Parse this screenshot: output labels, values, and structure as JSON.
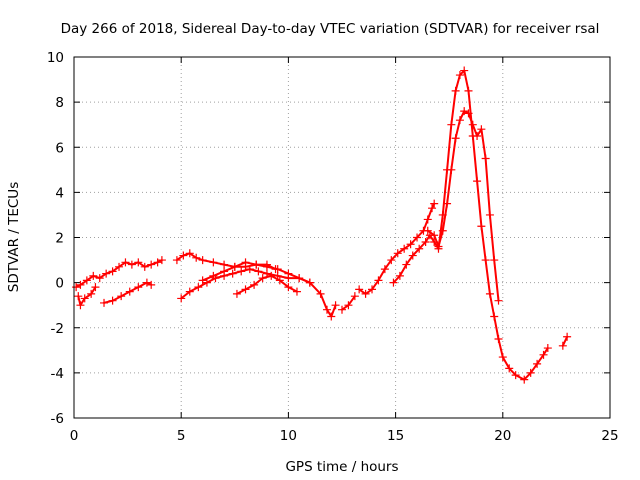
{
  "chart_data": {
    "type": "scatter",
    "title": "Day 266 of 2018, Sidereal Day-to-day VTEC variation (SDTVAR) for receiver rsal",
    "xlabel": "GPS time / hours",
    "ylabel": "SDTVAR / TECUs",
    "xlim": [
      0,
      25
    ],
    "ylim": [
      -6,
      10
    ],
    "xticks": [
      "0",
      "5",
      "10",
      "15",
      "20",
      "25"
    ],
    "yticks": [
      "-6",
      "-4",
      "-2",
      "0",
      "2",
      "4",
      "6",
      "8",
      "10"
    ],
    "grid": true,
    "marker": "+",
    "color": "#ff0000",
    "series": [
      {
        "name": "s1",
        "x": [
          0.1,
          0.3,
          0.6,
          0.9,
          1.2,
          1.5,
          1.8,
          2.1,
          2.4,
          2.7,
          3.0,
          3.3,
          3.6,
          3.9,
          4.1
        ],
        "y": [
          -0.2,
          -0.1,
          0.1,
          0.3,
          0.2,
          0.4,
          0.5,
          0.7,
          0.9,
          0.8,
          0.9,
          0.7,
          0.8,
          0.9,
          1.0
        ]
      },
      {
        "name": "s2",
        "x": [
          0.2,
          0.3,
          0.5,
          0.8,
          1.0
        ],
        "y": [
          -0.6,
          -1.0,
          -0.7,
          -0.5,
          -0.2
        ]
      },
      {
        "name": "s3",
        "x": [
          1.4,
          1.8,
          2.2,
          2.6,
          3.0,
          3.4,
          3.6
        ],
        "y": [
          -0.9,
          -0.8,
          -0.6,
          -0.4,
          -0.2,
          0.0,
          -0.1
        ]
      },
      {
        "name": "s4",
        "x": [
          4.8,
          5.1,
          5.4,
          5.7,
          6.0,
          6.5,
          7.0,
          7.5,
          8.0,
          8.5,
          9.0,
          9.4
        ],
        "y": [
          1.0,
          1.2,
          1.3,
          1.1,
          1.0,
          0.9,
          0.8,
          0.7,
          0.7,
          0.8,
          0.8,
          0.6
        ]
      },
      {
        "name": "s5",
        "x": [
          5.0,
          5.4,
          5.8,
          6.2,
          6.6,
          7.0,
          7.4,
          7.8,
          8.2,
          8.6,
          9.0,
          9.5,
          10.0,
          10.5,
          11.0,
          11.5,
          11.8,
          12.0,
          12.2
        ],
        "y": [
          -0.7,
          -0.4,
          -0.2,
          0.0,
          0.2,
          0.3,
          0.4,
          0.5,
          0.6,
          0.5,
          0.4,
          0.3,
          0.2,
          0.2,
          0.0,
          -0.5,
          -1.2,
          -1.5,
          -1.0
        ]
      },
      {
        "name": "s6",
        "x": [
          6.0,
          6.5,
          7.0,
          7.5,
          8.0,
          8.5,
          9.0,
          9.5,
          10.0,
          10.5,
          11.0
        ],
        "y": [
          0.1,
          0.3,
          0.5,
          0.7,
          0.9,
          0.8,
          0.7,
          0.6,
          0.4,
          0.2,
          0.0
        ]
      },
      {
        "name": "s7",
        "x": [
          7.6,
          8.0,
          8.4,
          8.8,
          9.2,
          9.6,
          10.0,
          10.4
        ],
        "y": [
          -0.5,
          -0.3,
          -0.1,
          0.2,
          0.3,
          0.1,
          -0.2,
          -0.4
        ]
      },
      {
        "name": "s8",
        "x": [
          12.5,
          12.8,
          13.1
        ],
        "y": [
          -1.2,
          -1.0,
          -0.6
        ]
      },
      {
        "name": "s9",
        "x": [
          13.3,
          13.6,
          13.9,
          14.2,
          14.5,
          14.8,
          15.1,
          15.4,
          15.7,
          16.0,
          16.3,
          16.5,
          16.7,
          16.8
        ],
        "y": [
          -0.3,
          -0.5,
          -0.3,
          0.1,
          0.6,
          1.0,
          1.3,
          1.5,
          1.7,
          2.0,
          2.3,
          2.8,
          3.3,
          3.5
        ]
      },
      {
        "name": "s10",
        "x": [
          14.9,
          15.2,
          15.5,
          15.8,
          16.1,
          16.4,
          16.6,
          16.8,
          17.0,
          17.2,
          17.4,
          17.6,
          17.8,
          18.0,
          18.2,
          18.4,
          18.6,
          18.8,
          19.0,
          19.2,
          19.4,
          19.6,
          19.8,
          20.0,
          20.3,
          20.6,
          21.0,
          21.3,
          21.6,
          21.9,
          22.1
        ],
        "y": [
          0.0,
          0.3,
          0.8,
          1.2,
          1.5,
          1.8,
          2.1,
          1.8,
          1.5,
          3.0,
          5.0,
          7.0,
          8.5,
          9.2,
          9.4,
          8.5,
          6.5,
          4.5,
          2.5,
          1.0,
          -0.5,
          -1.5,
          -2.5,
          -3.3,
          -3.8,
          -4.1,
          -4.3,
          -4.0,
          -3.6,
          -3.2,
          -2.9
        ]
      },
      {
        "name": "s11",
        "x": [
          16.5,
          16.8,
          17.0,
          17.2,
          17.4,
          17.6,
          17.8,
          18.0,
          18.2,
          18.4,
          18.6,
          18.8,
          19.0,
          19.2,
          19.4,
          19.6,
          19.8
        ],
        "y": [
          2.3,
          2.1,
          1.6,
          2.3,
          3.5,
          5.0,
          6.4,
          7.2,
          7.6,
          7.5,
          7.0,
          6.5,
          6.8,
          5.5,
          3.0,
          1.0,
          -0.8
        ]
      },
      {
        "name": "s12",
        "x": [
          22.8,
          23.0
        ],
        "y": [
          -2.8,
          -2.4
        ]
      }
    ]
  }
}
